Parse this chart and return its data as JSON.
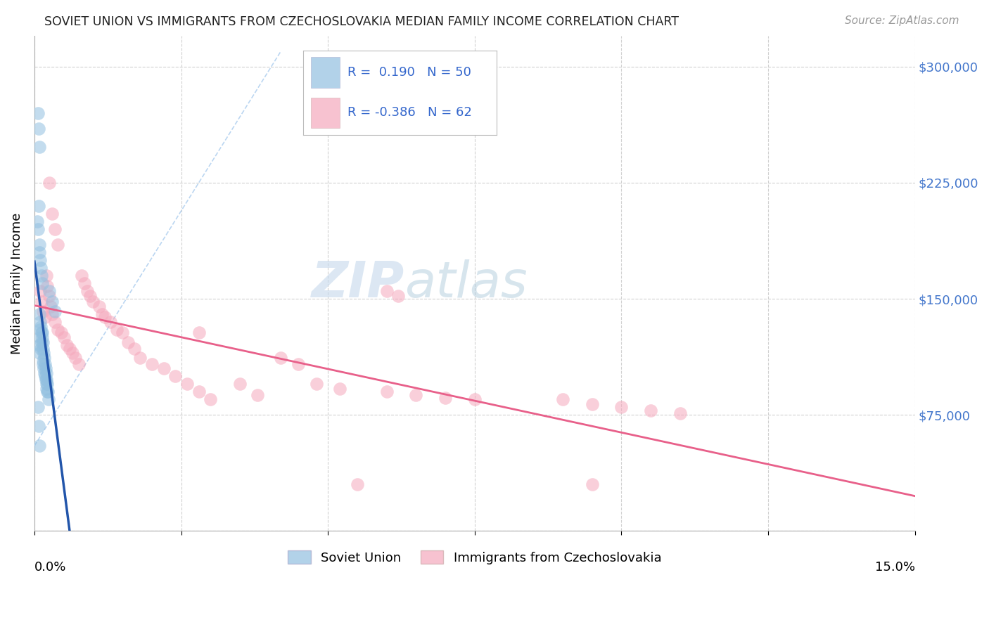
{
  "title": "SOVIET UNION VS IMMIGRANTS FROM CZECHOSLOVAKIA MEDIAN FAMILY INCOME CORRELATION CHART",
  "source": "Source: ZipAtlas.com",
  "ylabel": "Median Family Income",
  "yticks": [
    0,
    75000,
    150000,
    225000,
    300000
  ],
  "ytick_labels": [
    "",
    "$75,000",
    "$150,000",
    "$225,000",
    "$300,000"
  ],
  "xlim": [
    0.0,
    0.15
  ],
  "ylim": [
    0,
    320000
  ],
  "legend_label1": "Soviet Union",
  "legend_label2": "Immigrants from Czechoslovakia",
  "r1": 0.19,
  "n1": 50,
  "r2": -0.386,
  "n2": 62,
  "blue_color": "#92C0E0",
  "pink_color": "#F5A8BC",
  "blue_line_color": "#2255AA",
  "pink_line_color": "#E8608A",
  "diag_color": "#AACCEE",
  "su_x": [
    0.0008,
    0.0009,
    0.001,
    0.001,
    0.0011,
    0.0012,
    0.0013,
    0.0014,
    0.0015,
    0.0016,
    0.0017,
    0.0018,
    0.0019,
    0.002,
    0.0021,
    0.0022,
    0.0005,
    0.0006,
    0.0007,
    0.0008,
    0.0009,
    0.001,
    0.0011,
    0.0012,
    0.0013,
    0.0025,
    0.003,
    0.0035,
    0.0006,
    0.0007,
    0.0008,
    0.0009,
    0.001,
    0.0011,
    0.0012,
    0.0013,
    0.0014,
    0.0015,
    0.0016,
    0.0017,
    0.0018,
    0.0019,
    0.002,
    0.0021,
    0.0022,
    0.0023,
    0.0024,
    0.0006,
    0.0007,
    0.0008
  ],
  "su_y": [
    115000,
    120000,
    125000,
    130000,
    118000,
    122000,
    128000,
    110000,
    108000,
    105000,
    102000,
    100000,
    98000,
    95000,
    92000,
    90000,
    200000,
    195000,
    210000,
    185000,
    180000,
    175000,
    170000,
    165000,
    160000,
    155000,
    148000,
    142000,
    270000,
    260000,
    248000,
    140000,
    135000,
    132000,
    128000,
    125000,
    122000,
    118000,
    115000,
    112000,
    108000,
    105000,
    102000,
    98000,
    95000,
    90000,
    85000,
    80000,
    68000,
    55000
  ],
  "cz_x": [
    0.001,
    0.0012,
    0.0015,
    0.0018,
    0.002,
    0.0022,
    0.0025,
    0.0028,
    0.003,
    0.0035,
    0.004,
    0.0045,
    0.005,
    0.0055,
    0.006,
    0.0065,
    0.007,
    0.0075,
    0.008,
    0.0085,
    0.009,
    0.0095,
    0.01,
    0.011,
    0.0115,
    0.012,
    0.013,
    0.014,
    0.015,
    0.016,
    0.017,
    0.018,
    0.02,
    0.022,
    0.024,
    0.026,
    0.028,
    0.03,
    0.035,
    0.038,
    0.042,
    0.045,
    0.048,
    0.052,
    0.06,
    0.065,
    0.07,
    0.075,
    0.09,
    0.095,
    0.1,
    0.105,
    0.11,
    0.0025,
    0.003,
    0.0035,
    0.004,
    0.028,
    0.055,
    0.095,
    0.06,
    0.062
  ],
  "cz_y": [
    155000,
    148000,
    142000,
    138000,
    165000,
    158000,
    152000,
    145000,
    140000,
    135000,
    130000,
    128000,
    125000,
    120000,
    118000,
    115000,
    112000,
    108000,
    165000,
    160000,
    155000,
    152000,
    148000,
    145000,
    140000,
    138000,
    135000,
    130000,
    128000,
    122000,
    118000,
    112000,
    108000,
    105000,
    100000,
    95000,
    90000,
    85000,
    95000,
    88000,
    112000,
    108000,
    95000,
    92000,
    90000,
    88000,
    86000,
    85000,
    85000,
    82000,
    80000,
    78000,
    76000,
    225000,
    205000,
    195000,
    185000,
    128000,
    30000,
    30000,
    155000,
    152000
  ]
}
